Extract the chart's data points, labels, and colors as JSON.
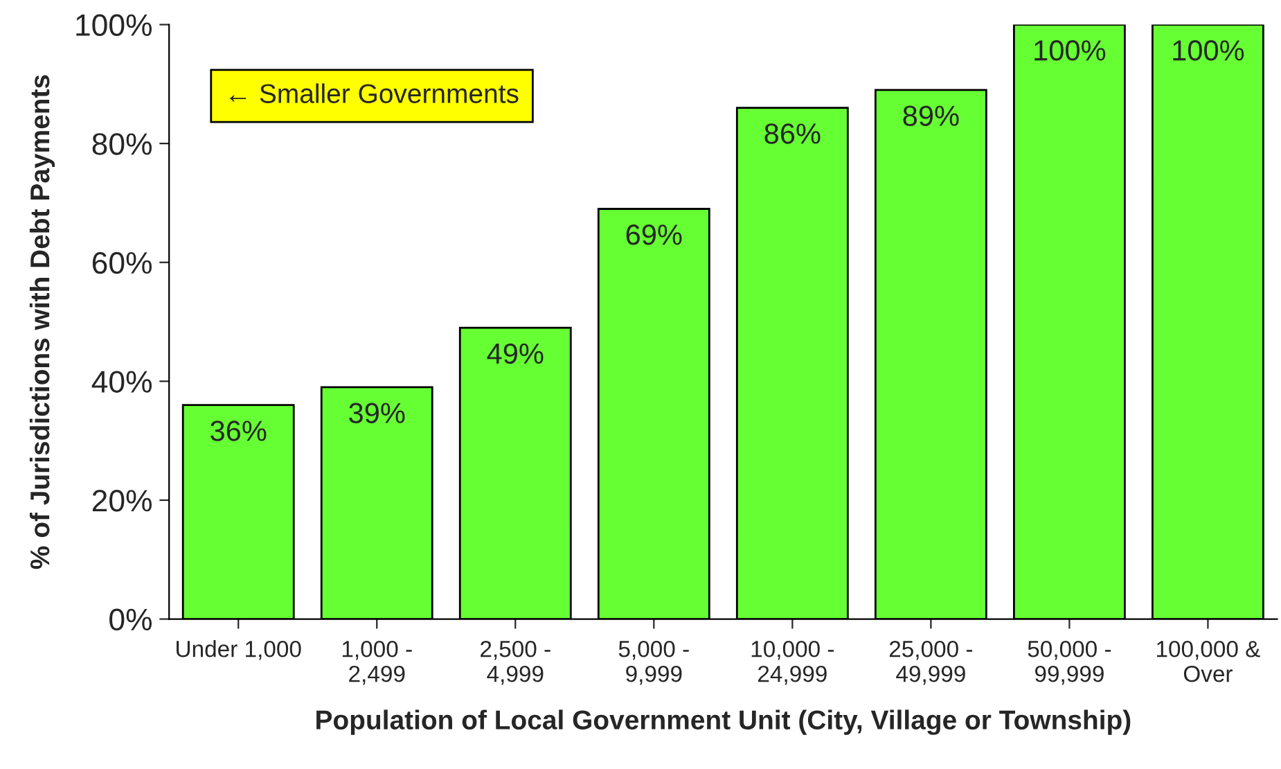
{
  "chart_data": {
    "type": "bar",
    "xlabel": "Population of Local Government Unit (City, Village or Township)",
    "ylabel": "% of Jurisdictions with Debt Payments",
    "categories": [
      "Under 1,000",
      "1,000 -\n2,499",
      "2,500 -\n4,999",
      "5,000 -\n9,999",
      "10,000 -\n24,999",
      "25,000 -\n49,999",
      "50,000 -\n99,999",
      "100,000 &\nOver"
    ],
    "values": [
      36,
      39,
      49,
      69,
      86,
      89,
      100,
      100
    ],
    "value_labels": [
      "36%",
      "39%",
      "49%",
      "69%",
      "86%",
      "89%",
      "100%",
      "100%"
    ],
    "color": "#66ff33",
    "ylim": [
      0,
      100
    ],
    "yticks": [
      {
        "value": 0,
        "label": "0%"
      },
      {
        "value": 20,
        "label": "20%"
      },
      {
        "value": 40,
        "label": "40%"
      },
      {
        "value": 60,
        "label": "60%"
      },
      {
        "value": 80,
        "label": "80%"
      },
      {
        "value": 100,
        "label": "100%"
      }
    ],
    "grid": false,
    "legend": false,
    "annotations": [
      "← Smaller Governments"
    ]
  }
}
